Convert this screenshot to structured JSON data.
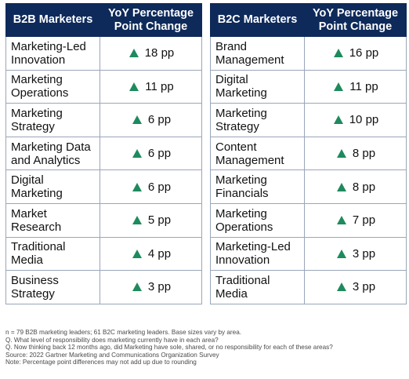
{
  "b2b": {
    "header_category": "B2B Marketers",
    "header_change": "YoY Percentage Point Change",
    "rows": [
      {
        "label": "Marketing-Led Innovation",
        "value": "18 pp"
      },
      {
        "label": "Marketing Operations",
        "value": "11 pp"
      },
      {
        "label": "Marketing Strategy",
        "value": "6 pp"
      },
      {
        "label": "Marketing Data and Analytics",
        "value": "6 pp"
      },
      {
        "label": "Digital Marketing",
        "value": "6 pp"
      },
      {
        "label": "Market Research",
        "value": "5 pp"
      },
      {
        "label": "Traditional Media",
        "value": "4 pp"
      },
      {
        "label": "Business Strategy",
        "value": "3 pp"
      }
    ]
  },
  "b2c": {
    "header_category": "B2C Marketers",
    "header_change": "YoY Percentage Point Change",
    "rows": [
      {
        "label": "Brand Management",
        "value": "16 pp"
      },
      {
        "label": "Digital Marketing",
        "value": "11 pp"
      },
      {
        "label": "Marketing Strategy",
        "value": "10 pp"
      },
      {
        "label": "Content Management",
        "value": "8 pp"
      },
      {
        "label": "Marketing Financials",
        "value": "8 pp"
      },
      {
        "label": "Marketing Operations",
        "value": "7 pp"
      },
      {
        "label": "Marketing-Led Innovation",
        "value": "3 pp"
      },
      {
        "label": "Traditional Media",
        "value": "3 pp"
      }
    ]
  },
  "notes": [
    "n = 79 B2B marketing leaders; 61 B2C marketing leaders. Base sizes vary by area.",
    "Q. What level of responsibility does marketing currently have in each area?",
    "Q. Now thinking back 12 months ago, did Marketing have sole, shared, or no responsibility for each of these areas?",
    "Source: 2022 Gartner Marketing and Communications Organization Survey",
    "Note: Percentage point differences may not add up due to rounding"
  ],
  "colors": {
    "header_bg": "#0e2a5a",
    "up_arrow": "#1e8a5e",
    "border": "#9aa6b8"
  },
  "icons": {
    "up": "up-triangle-icon"
  }
}
